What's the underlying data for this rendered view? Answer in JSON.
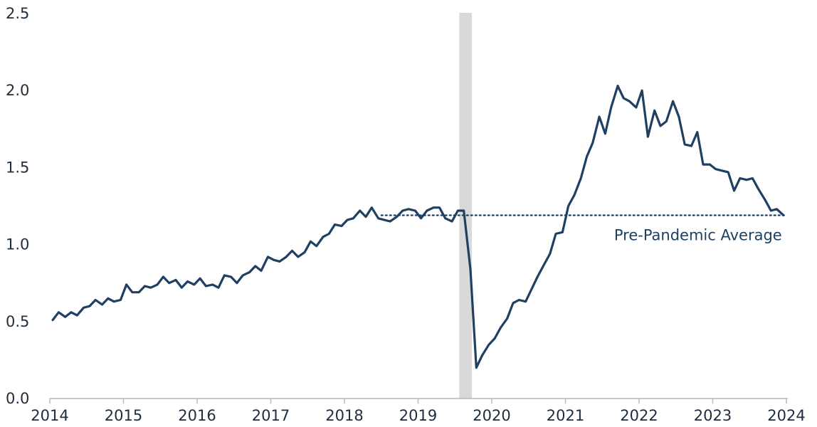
{
  "chart_data": {
    "type": "line",
    "title": "",
    "xlabel": "",
    "ylabel": "",
    "xlim": [
      2014,
      2024
    ],
    "ylim": [
      0,
      2.5
    ],
    "yticks": [
      "0.0",
      "0.5",
      "1.0",
      "1.5",
      "2.0",
      "2.5"
    ],
    "xticks": [
      "2014",
      "2015",
      "2016",
      "2017",
      "2018",
      "2019",
      "2020",
      "2021",
      "2022",
      "2023",
      "2024"
    ],
    "grid": false,
    "line_color": "#1f3f63",
    "recession_band": {
      "start": 2019.56,
      "end": 2019.73,
      "color": "#d9d9d9"
    },
    "reference_line": {
      "label": "Pre-Pandemic Average",
      "value": 1.19,
      "x_start": 2018.5,
      "x_end": 2024,
      "color": "#1f3f63",
      "style": "dotted"
    },
    "series": [
      {
        "x": [
          2014.04,
          2014.12,
          2014.21,
          2014.29,
          2014.37,
          2014.46,
          2014.54,
          2014.62,
          2014.71,
          2014.79,
          2014.87,
          2014.96,
          2015.04,
          2015.12,
          2015.21,
          2015.29,
          2015.37,
          2015.46,
          2015.54,
          2015.62,
          2015.71,
          2015.79,
          2015.87,
          2015.96,
          2016.04,
          2016.12,
          2016.21,
          2016.29,
          2016.37,
          2016.46,
          2016.54,
          2016.62,
          2016.71,
          2016.79,
          2016.87,
          2016.96,
          2017.04,
          2017.12,
          2017.21,
          2017.29,
          2017.37,
          2017.46,
          2017.54,
          2017.62,
          2017.71,
          2017.79,
          2017.87,
          2017.96,
          2018.04,
          2018.12,
          2018.21,
          2018.29,
          2018.37,
          2018.46,
          2018.54,
          2018.62,
          2018.71,
          2018.79,
          2018.87,
          2018.96,
          2019.04,
          2019.12,
          2019.21,
          2019.29,
          2019.37,
          2019.46,
          2019.54,
          2019.62,
          2019.71,
          2019.79,
          2019.87,
          2019.96,
          2020.04,
          2020.12,
          2020.21,
          2020.29,
          2020.37,
          2020.46,
          2020.54,
          2020.62,
          2020.71,
          2020.79,
          2020.87,
          2020.96,
          2021.04,
          2021.12,
          2021.21,
          2021.29,
          2021.37,
          2021.46,
          2021.54,
          2021.62,
          2021.71,
          2021.79,
          2021.87,
          2021.96,
          2022.04,
          2022.12,
          2022.21,
          2022.29,
          2022.37,
          2022.46,
          2022.54,
          2022.62,
          2022.71,
          2022.79,
          2022.87,
          2022.96,
          2023.04,
          2023.12,
          2023.21,
          2023.29,
          2023.37,
          2023.46,
          2023.54,
          2023.62,
          2023.71,
          2023.79,
          2023.87,
          2023.96
        ],
        "values": [
          0.51,
          0.56,
          0.53,
          0.56,
          0.54,
          0.59,
          0.6,
          0.64,
          0.61,
          0.65,
          0.63,
          0.64,
          0.74,
          0.69,
          0.69,
          0.73,
          0.72,
          0.74,
          0.79,
          0.75,
          0.77,
          0.72,
          0.76,
          0.74,
          0.78,
          0.73,
          0.74,
          0.72,
          0.8,
          0.79,
          0.75,
          0.8,
          0.82,
          0.86,
          0.83,
          0.92,
          0.9,
          0.89,
          0.92,
          0.96,
          0.92,
          0.95,
          1.02,
          0.99,
          1.05,
          1.07,
          1.13,
          1.12,
          1.16,
          1.17,
          1.22,
          1.18,
          1.24,
          1.17,
          1.16,
          1.15,
          1.18,
          1.22,
          1.23,
          1.22,
          1.17,
          1.22,
          1.24,
          1.24,
          1.17,
          1.15,
          1.22,
          1.22,
          0.84,
          0.2,
          0.28,
          0.35,
          0.39,
          0.46,
          0.52,
          0.62,
          0.64,
          0.63,
          0.71,
          0.79,
          0.87,
          0.94,
          1.07,
          1.08,
          1.25,
          1.32,
          1.43,
          1.57,
          1.66,
          1.83,
          1.72,
          1.89,
          2.03,
          1.95,
          1.93,
          1.89,
          2.0,
          1.7,
          1.87,
          1.77,
          1.8,
          1.93,
          1.83,
          1.65,
          1.64,
          1.73,
          1.52,
          1.52,
          1.49,
          1.48,
          1.47,
          1.35,
          1.43,
          1.42,
          1.43,
          1.36,
          1.29,
          1.22,
          1.23,
          1.19
        ]
      }
    ]
  }
}
